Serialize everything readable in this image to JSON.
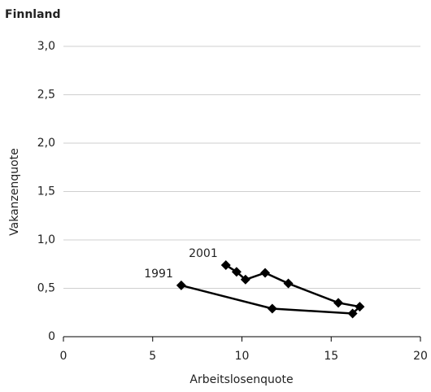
{
  "chart_data": {
    "type": "line",
    "title": "Finnland",
    "x_label": "Arbeitslosenquote",
    "y_label": "Vakanzenquote",
    "x": [
      6.6,
      11.7,
      16.2,
      16.6,
      15.4,
      12.6,
      11.3,
      10.2,
      9.7,
      9.1
    ],
    "series": [
      {
        "color": "#000000",
        "values": [
          0.53,
          0.29,
          0.24,
          0.31,
          0.35,
          0.55,
          0.66,
          0.59,
          0.67,
          0.74
        ]
      }
    ],
    "point_labels": [
      "1991",
      null,
      null,
      null,
      null,
      null,
      null,
      null,
      null,
      "2001"
    ],
    "xlim": [
      0,
      20
    ],
    "xticks": [
      0,
      5,
      10,
      15,
      20
    ],
    "ylim": [
      0,
      3
    ],
    "yticks": [
      {
        "value": 0,
        "label": "0"
      },
      {
        "value": 0.5,
        "label": "0,5"
      },
      {
        "value": 1,
        "label": "1,0"
      },
      {
        "value": 1.5,
        "label": "1,5"
      },
      {
        "value": 2,
        "label": "2,0"
      },
      {
        "value": 2.5,
        "label": "2,5"
      },
      {
        "value": 3,
        "label": "3,0"
      }
    ],
    "grid": true
  }
}
